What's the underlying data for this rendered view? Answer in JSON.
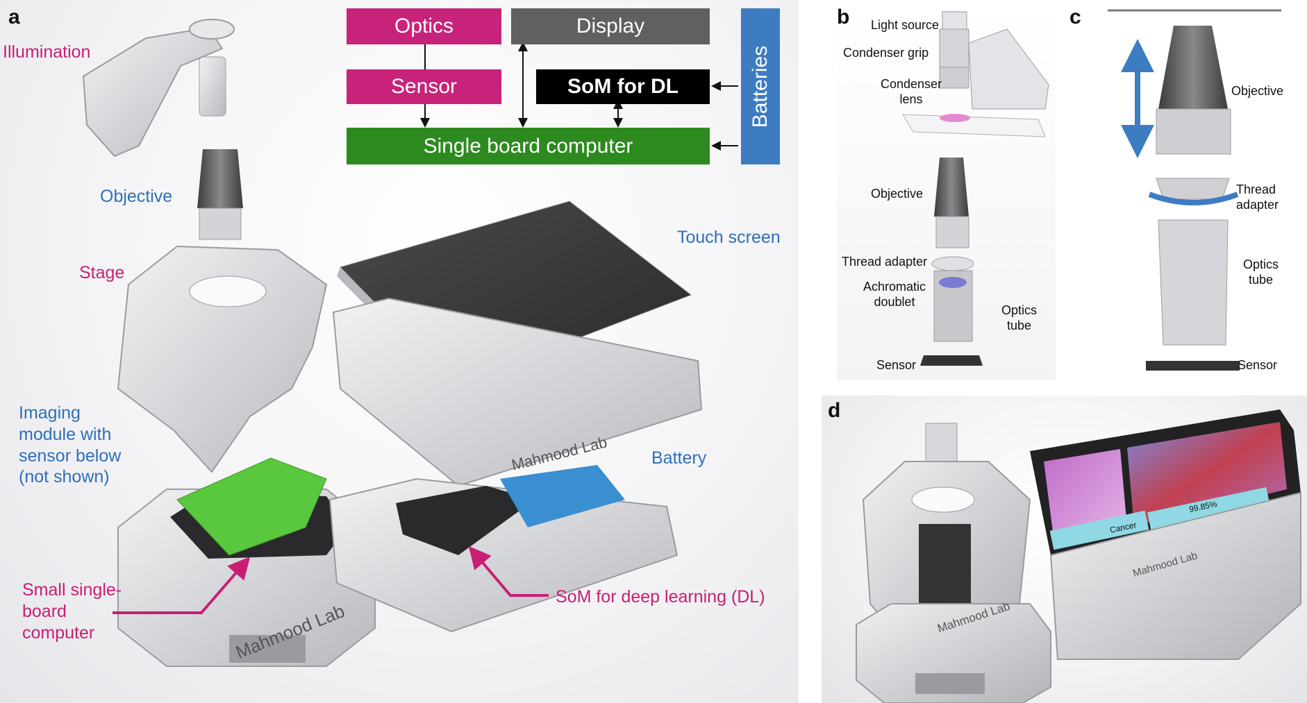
{
  "panel_letters": {
    "a": "a",
    "b": "b",
    "c": "c",
    "d": "d"
  },
  "colors": {
    "optics": "#c8237a",
    "sensor": "#c8237a",
    "display": "#606060",
    "som": "#000000",
    "sbc": "#2d8a1f",
    "batteries": "#3d7cc0",
    "pink_text": "#c81e74",
    "blue_text": "#2e6fb8"
  },
  "block_diagram": {
    "optics": "Optics",
    "display": "Display",
    "batteries": "Batteries",
    "sensor": "Sensor",
    "som": "SoM for DL",
    "sbc": "Single board computer"
  },
  "panel_a": {
    "illumination": "Illumination",
    "objective": "Objective",
    "stage": "Stage",
    "imaging_module": "Imaging\nmodule with\nsensor below\n(not shown)",
    "small_sbc": "Small single-\nboard\ncomputer",
    "touch_screen": "Touch screen",
    "battery": "Battery",
    "som_dl": "SoM for deep learning (DL)",
    "brand_left": "Mahmood Lab",
    "brand_right": "Mahmood Lab"
  },
  "panel_b": {
    "light_source": "Light source",
    "condenser_grip": "Condenser grip",
    "condenser_lens": "Condenser\nlens",
    "objective": "Objective",
    "thread_adapter": "Thread adapter",
    "achromatic_doublet": "Achromatic\ndoublet",
    "optics_tube": "Optics\ntube",
    "sensor": "Sensor"
  },
  "panel_c": {
    "objective": "Objective",
    "thread_adapter": "Thread\nadapter",
    "optics_tube": "Optics\ntube",
    "sensor": "Sensor"
  },
  "panel_d": {
    "brand_left": "Mahmood Lab",
    "brand_right": "Mahmood Lab",
    "screen_label": "Cancer",
    "screen_value": "99.85%"
  }
}
